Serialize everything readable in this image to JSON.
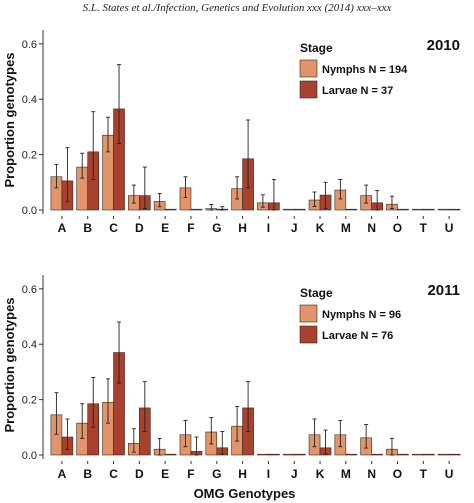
{
  "running_head": "S.L. States et al./Infection, Genetics and Evolution xxx (2014) xxx–xxx",
  "colors": {
    "nymphs": "#e0956a",
    "larvae": "#a8412e",
    "outline": "#3a2620",
    "error_bar": "#222222"
  },
  "chart_data": [
    {
      "type": "bar",
      "year_label": "2010",
      "categories": [
        "A",
        "B",
        "C",
        "D",
        "E",
        "F",
        "G",
        "H",
        "I",
        "J",
        "K",
        "M",
        "N",
        "O",
        "T",
        "U"
      ],
      "ylabel": "Proportion genotypes",
      "xlabel": "",
      "ylim": [
        0,
        0.65
      ],
      "yticks": [
        "0.0",
        "0.2",
        "0.4",
        "0.6"
      ],
      "legend": {
        "title": "Stage",
        "position": "top-right"
      },
      "grid": false,
      "series": [
        {
          "name": "Nymphs N = 194",
          "color_key": "nymphs",
          "values": [
            0.12,
            0.155,
            0.27,
            0.052,
            0.031,
            0.08,
            0.005,
            0.077,
            0.026,
            0,
            0.036,
            0.072,
            0.052,
            0.021,
            0,
            0
          ],
          "err_low": [
            0.08,
            0.115,
            0.21,
            0.025,
            0.012,
            0.045,
            0.0,
            0.04,
            0.01,
            0,
            0.013,
            0.04,
            0.025,
            0.005,
            0,
            0
          ],
          "err_high": [
            0.165,
            0.205,
            0.335,
            0.09,
            0.06,
            0.12,
            0.02,
            0.12,
            0.055,
            0,
            0.065,
            0.11,
            0.09,
            0.05,
            0,
            0
          ]
        },
        {
          "name": "Larvae N = 37",
          "color_key": "larvae",
          "values": [
            0.105,
            0.21,
            0.365,
            0.052,
            0,
            0,
            0.003,
            0.185,
            0.026,
            0,
            0.054,
            0,
            0.026,
            0,
            0,
            0
          ],
          "err_low": [
            0.03,
            0.11,
            0.24,
            0.005,
            0,
            0,
            0.0,
            0.08,
            0.0,
            0,
            0.005,
            0,
            0.0,
            0,
            0,
            0
          ],
          "err_high": [
            0.225,
            0.355,
            0.525,
            0.155,
            0,
            0,
            0.012,
            0.325,
            0.11,
            0,
            0.1,
            0,
            0.07,
            0,
            0,
            0
          ]
        }
      ]
    },
    {
      "type": "bar",
      "year_label": "2011",
      "categories": [
        "A",
        "B",
        "C",
        "D",
        "E",
        "F",
        "G",
        "H",
        "I",
        "J",
        "K",
        "M",
        "N",
        "O",
        "T",
        "U"
      ],
      "ylabel": "Proportion genotypes",
      "xlabel": "OMG Genotypes",
      "ylim": [
        0,
        0.65
      ],
      "yticks": [
        "0.0",
        "0.2",
        "0.4",
        "0.6"
      ],
      "legend": {
        "title": "Stage",
        "position": "top-right"
      },
      "grid": false,
      "series": [
        {
          "name": "Nymphs N = 96",
          "color_key": "nymphs",
          "values": [
            0.145,
            0.115,
            0.19,
            0.042,
            0.021,
            0.073,
            0.083,
            0.104,
            0,
            0,
            0.073,
            0.073,
            0.062,
            0.021,
            0,
            0
          ],
          "err_low": [
            0.075,
            0.06,
            0.115,
            0.01,
            0.0,
            0.03,
            0.04,
            0.05,
            0,
            0,
            0.03,
            0.03,
            0.025,
            0.0,
            0,
            0
          ],
          "err_high": [
            0.225,
            0.185,
            0.275,
            0.095,
            0.06,
            0.125,
            0.135,
            0.175,
            0,
            0,
            0.13,
            0.125,
            0.11,
            0.06,
            0,
            0
          ]
        },
        {
          "name": "Larvae N = 76",
          "color_key": "larvae",
          "values": [
            0.065,
            0.185,
            0.37,
            0.17,
            0,
            0.013,
            0.026,
            0.17,
            0,
            0,
            0.026,
            0,
            0,
            0,
            0,
            0
          ],
          "err_low": [
            0.02,
            0.1,
            0.26,
            0.085,
            0,
            0.0,
            0.003,
            0.085,
            0,
            0,
            0.003,
            0,
            0,
            0,
            0,
            0
          ],
          "err_high": [
            0.13,
            0.28,
            0.48,
            0.265,
            0,
            0.065,
            0.085,
            0.265,
            0,
            0,
            0.09,
            0,
            0,
            0,
            0,
            0
          ]
        }
      ]
    }
  ]
}
